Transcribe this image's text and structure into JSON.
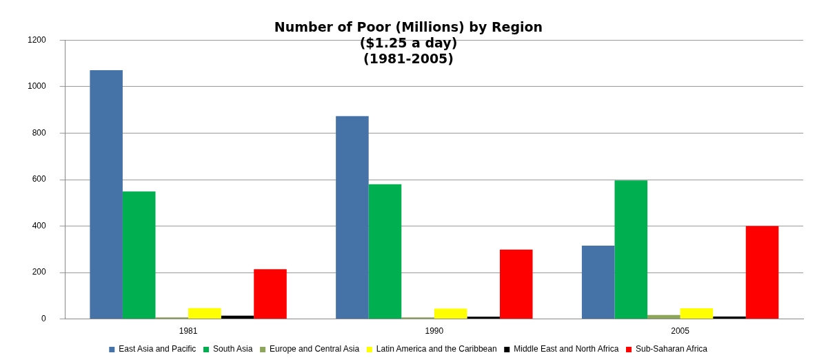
{
  "chart_data": {
    "type": "bar",
    "title": [
      "Number of Poor (Millions) by Region",
      "($1.25 a day)",
      "(1981-2005)"
    ],
    "categories": [
      "1981",
      "1990",
      "2005"
    ],
    "series": [
      {
        "name": "East Asia and Pacific",
        "color": "#4572a7",
        "values": [
          1071,
          873,
          316
        ]
      },
      {
        "name": "South Asia",
        "color": "#00b050",
        "values": [
          549,
          580,
          596
        ]
      },
      {
        "name": "Europe and Central Asia",
        "color": "#8ea65a",
        "values": [
          7,
          7,
          17
        ]
      },
      {
        "name": "Latin America and the Caribbean",
        "color": "#ffff00",
        "values": [
          47,
          45,
          46
        ]
      },
      {
        "name": "Middle East and North Africa",
        "color": "#000000",
        "values": [
          14,
          10,
          11
        ]
      },
      {
        "name": "Sub-Saharan Africa",
        "color": "#ff0000",
        "values": [
          214,
          299,
          400
        ]
      }
    ],
    "ylim": [
      0,
      1200
    ],
    "yticks": [
      0,
      200,
      400,
      600,
      800,
      1000,
      1200
    ],
    "grid": "y",
    "legend": "bottom"
  }
}
